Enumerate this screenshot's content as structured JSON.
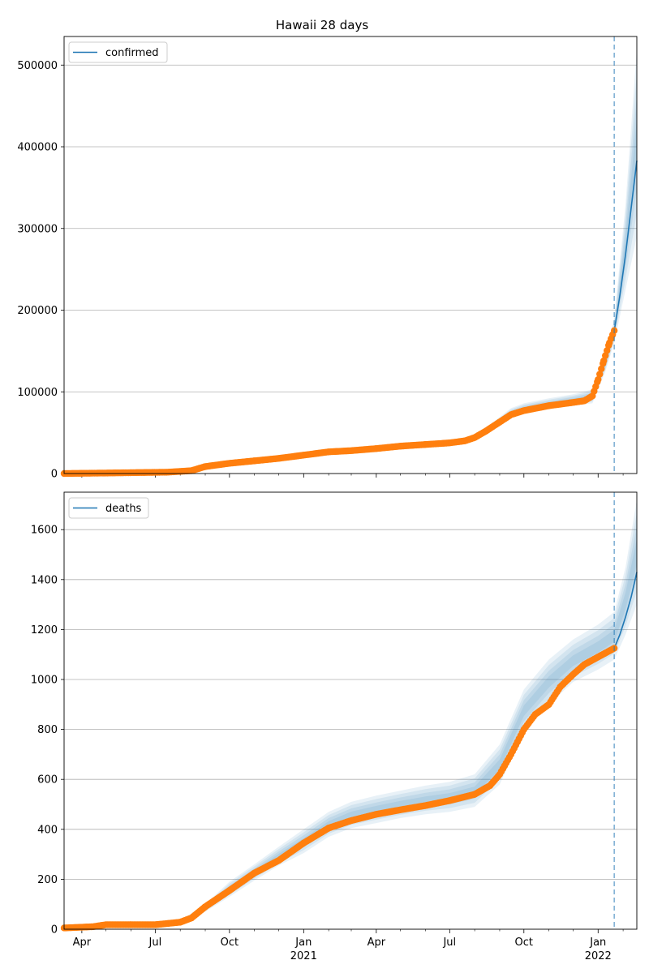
{
  "title": "Hawaii 28 days",
  "colors": {
    "model": "#1f77b4",
    "observed": "#ff7f0e",
    "band": "#1f77b4",
    "grid": "#b0b0b0"
  },
  "x_axis": {
    "ticks": [
      {
        "date": "2020-04-01",
        "label": "Apr",
        "sub": ""
      },
      {
        "date": "2020-07-01",
        "label": "Jul",
        "sub": ""
      },
      {
        "date": "2020-10-01",
        "label": "Oct",
        "sub": ""
      },
      {
        "date": "2021-01-01",
        "label": "Jan",
        "sub": "2021"
      },
      {
        "date": "2021-04-01",
        "label": "Apr",
        "sub": ""
      },
      {
        "date": "2021-07-01",
        "label": "Jul",
        "sub": ""
      },
      {
        "date": "2021-10-01",
        "label": "Oct",
        "sub": ""
      },
      {
        "date": "2022-01-01",
        "label": "Jan",
        "sub": "2022"
      }
    ],
    "range": [
      "2020-03-10",
      "2022-02-18"
    ],
    "forecast_start": "2022-01-21"
  },
  "chart_data": [
    {
      "type": "line",
      "title": "Hawaii 28 days",
      "legend": "confirmed",
      "legend_position": "top-left",
      "grid": "horizontal",
      "ylim": [
        0,
        535000
      ],
      "yticks": [
        0,
        100000,
        200000,
        300000,
        400000,
        500000
      ],
      "observed": {
        "x": [
          "2020-03-10",
          "2020-05-01",
          "2020-07-15",
          "2020-08-15",
          "2020-09-01",
          "2020-10-01",
          "2020-11-01",
          "2020-12-01",
          "2021-01-01",
          "2021-02-01",
          "2021-03-01",
          "2021-04-01",
          "2021-05-01",
          "2021-06-01",
          "2021-07-01",
          "2021-07-20",
          "2021-08-01",
          "2021-08-15",
          "2021-09-01",
          "2021-09-15",
          "2021-10-01",
          "2021-11-01",
          "2021-12-01",
          "2021-12-15",
          "2021-12-25",
          "2022-01-01",
          "2022-01-08",
          "2022-01-15",
          "2022-01-21"
        ],
        "y": [
          10,
          600,
          1600,
          3500,
          8500,
          12500,
          15500,
          18500,
          22500,
          26500,
          28000,
          30500,
          33500,
          35500,
          37500,
          40000,
          44000,
          52000,
          63000,
          72000,
          77000,
          83000,
          87000,
          89000,
          95000,
          115000,
          138000,
          160000,
          175000
        ]
      },
      "model": {
        "x": [
          "2022-01-21",
          "2022-01-28",
          "2022-02-04",
          "2022-02-11",
          "2022-02-18"
        ],
        "y": [
          175000,
          218000,
          268000,
          325000,
          383000
        ]
      },
      "bands": [
        {
          "x": [
            "2021-08-20",
            "2021-09-15",
            "2021-10-01",
            "2021-11-01",
            "2021-12-01",
            "2021-12-25",
            "2022-01-10",
            "2022-01-21",
            "2022-02-04",
            "2022-02-18"
          ],
          "lo": [
            52000,
            68000,
            73000,
            79000,
            83000,
            86000,
            125000,
            160000,
            225000,
            290000
          ],
          "hi": [
            60000,
            80000,
            86000,
            92000,
            97000,
            103000,
            145000,
            190000,
            330000,
            520000
          ]
        }
      ]
    },
    {
      "type": "line",
      "legend": "deaths",
      "legend_position": "top-left",
      "grid": "horizontal",
      "ylim": [
        0,
        1750
      ],
      "yticks": [
        0,
        200,
        400,
        600,
        800,
        1000,
        1200,
        1400,
        1600
      ],
      "observed": {
        "x": [
          "2020-03-10",
          "2020-04-15",
          "2020-05-01",
          "2020-06-01",
          "2020-07-01",
          "2020-08-01",
          "2020-08-15",
          "2020-09-01",
          "2020-10-01",
          "2020-11-01",
          "2020-12-01",
          "2021-01-01",
          "2021-02-01",
          "2021-03-01",
          "2021-04-01",
          "2021-05-01",
          "2021-06-01",
          "2021-07-01",
          "2021-08-01",
          "2021-08-20",
          "2021-09-01",
          "2021-09-15",
          "2021-10-01",
          "2021-10-15",
          "2021-11-01",
          "2021-11-15",
          "2021-12-01",
          "2021-12-15",
          "2022-01-01",
          "2022-01-21"
        ],
        "y": [
          5,
          10,
          18,
          18,
          18,
          28,
          45,
          90,
          155,
          225,
          275,
          345,
          405,
          435,
          460,
          478,
          495,
          515,
          540,
          575,
          620,
          700,
          800,
          860,
          900,
          970,
          1020,
          1060,
          1090,
          1125
        ]
      },
      "model": {
        "x": [
          "2022-01-21",
          "2022-01-28",
          "2022-02-04",
          "2022-02-11",
          "2022-02-18"
        ],
        "y": [
          1125,
          1180,
          1250,
          1330,
          1430
        ]
      },
      "bands": [
        {
          "x": [
            "2020-08-01",
            "2020-09-01",
            "2020-10-01",
            "2020-11-01",
            "2020-12-01",
            "2021-01-01",
            "2021-02-01",
            "2021-03-01",
            "2021-04-01",
            "2021-05-01",
            "2021-06-01",
            "2021-07-01",
            "2021-08-01",
            "2021-09-01",
            "2021-10-01",
            "2021-11-01",
            "2021-12-01",
            "2022-01-01",
            "2022-01-21",
            "2022-02-04",
            "2022-02-18"
          ],
          "lo": [
            25,
            70,
            130,
            195,
            255,
            305,
            370,
            405,
            425,
            445,
            460,
            470,
            490,
            580,
            790,
            900,
            990,
            1040,
            1080,
            1180,
            1300
          ],
          "hi": [
            35,
            100,
            190,
            260,
            330,
            400,
            470,
            510,
            535,
            555,
            575,
            590,
            620,
            740,
            960,
            1080,
            1160,
            1220,
            1270,
            1450,
            1720
          ]
        }
      ]
    }
  ]
}
